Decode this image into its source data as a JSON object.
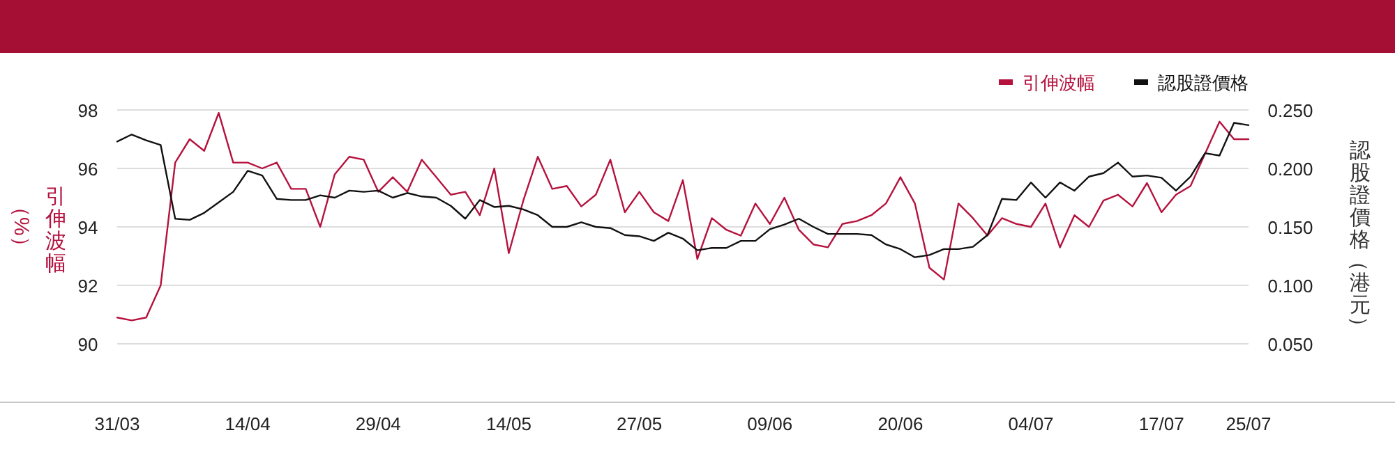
{
  "chart_data": {
    "type": "line",
    "categories": [
      "31/03",
      null,
      null,
      null,
      null,
      null,
      null,
      null,
      null,
      "14/04",
      null,
      null,
      null,
      null,
      null,
      null,
      null,
      null,
      "29/04",
      null,
      null,
      null,
      null,
      null,
      null,
      null,
      null,
      "14/05",
      null,
      null,
      null,
      null,
      null,
      null,
      null,
      null,
      "27/05",
      null,
      null,
      null,
      null,
      null,
      null,
      null,
      null,
      "09/06",
      null,
      null,
      null,
      null,
      null,
      null,
      null,
      null,
      "20/06",
      null,
      null,
      null,
      null,
      null,
      null,
      null,
      null,
      "04/07",
      null,
      null,
      null,
      null,
      null,
      null,
      null,
      null,
      "17/07",
      null,
      null,
      null,
      null,
      null,
      "25/07"
    ],
    "series": [
      {
        "name": "引伸波幅",
        "color": "#b5123e",
        "values": [
          90.9,
          90.8,
          90.9,
          92.0,
          96.2,
          97.0,
          96.6,
          97.9,
          96.2,
          96.2,
          96.0,
          96.2,
          95.3,
          95.3,
          94.0,
          95.8,
          96.4,
          96.3,
          95.2,
          95.7,
          95.2,
          96.3,
          95.7,
          95.1,
          95.2,
          94.4,
          96.0,
          93.1,
          94.9,
          96.4,
          95.3,
          95.4,
          94.7,
          95.1,
          96.3,
          94.5,
          95.2,
          94.5,
          94.2,
          95.6,
          92.9,
          94.3,
          93.9,
          93.7,
          94.8,
          94.1,
          95.0,
          93.9,
          93.4,
          93.3,
          94.1,
          94.2,
          94.4,
          94.8,
          95.7,
          94.8,
          92.6,
          92.2,
          94.8,
          94.3,
          93.7,
          94.3,
          94.1,
          94.0,
          94.8,
          93.3,
          94.4,
          94.0,
          94.9,
          95.1,
          94.7,
          95.5,
          94.5,
          95.1,
          95.4,
          96.5,
          97.6,
          97.0,
          97.0
        ]
      },
      {
        "name": "認股證價格",
        "color": "#111111",
        "axis": "y2",
        "values": [
          0.223,
          0.229,
          0.224,
          0.22,
          0.157,
          0.156,
          0.162,
          0.171,
          0.18,
          0.198,
          0.194,
          0.174,
          0.173,
          0.173,
          0.177,
          0.175,
          0.181,
          0.18,
          0.181,
          0.175,
          0.179,
          0.176,
          0.175,
          0.168,
          0.157,
          0.173,
          0.167,
          0.168,
          0.165,
          0.16,
          0.15,
          0.15,
          0.154,
          0.15,
          0.149,
          0.143,
          0.142,
          0.138,
          0.145,
          0.14,
          0.13,
          0.132,
          0.132,
          0.138,
          0.138,
          0.148,
          0.152,
          0.157,
          0.15,
          0.144,
          0.144,
          0.144,
          0.143,
          0.135,
          0.131,
          0.124,
          0.126,
          0.131,
          0.131,
          0.133,
          0.143,
          0.174,
          0.173,
          0.188,
          0.175,
          0.188,
          0.181,
          0.193,
          0.196,
          0.205,
          0.193,
          0.194,
          0.192,
          0.181,
          0.193,
          0.213,
          0.211,
          0.239,
          0.237
        ]
      }
    ],
    "ylabel": "引伸波幅（%）",
    "y2label": "認股證價格（港元）",
    "ylim": [
      88,
      98
    ],
    "yticks": [
      90,
      92,
      94,
      96,
      98
    ],
    "y2lim": [
      0,
      0.25
    ],
    "y2ticks": [
      {
        "value": 0.05,
        "label": "0.050"
      },
      {
        "value": 0.1,
        "label": "0.100"
      },
      {
        "value": 0.15,
        "label": "0.150"
      },
      {
        "value": 0.2,
        "label": "0.200"
      },
      {
        "value": 0.25,
        "label": "0.250"
      }
    ],
    "grid": "y",
    "legend": "top right"
  }
}
